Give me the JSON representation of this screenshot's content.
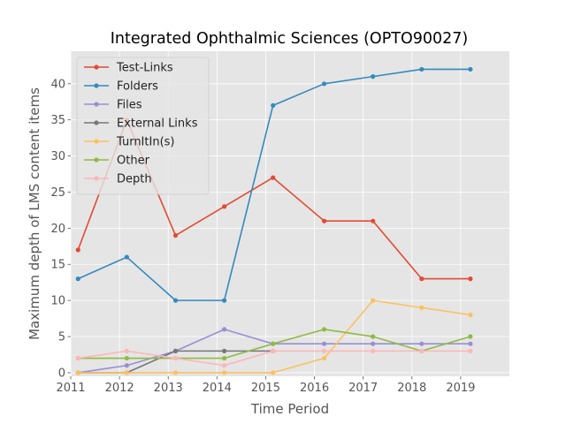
{
  "chart_data": {
    "type": "line",
    "title": "Integrated Ophthalmic Sciences (OPTO90027)",
    "xlabel": "Time Period",
    "ylabel": "Maximum depth of LMS content items",
    "xlim": [
      2011,
      2020
    ],
    "ylim": [
      -0.5,
      44.5
    ],
    "x_ticks": [
      2011,
      2012,
      2013,
      2014,
      2015,
      2016,
      2017,
      2018,
      2019
    ],
    "y_ticks": [
      0,
      5,
      10,
      15,
      20,
      25,
      30,
      35,
      40
    ],
    "grid": true,
    "legend_position": "top-left",
    "x": [
      2011.15,
      2012.15,
      2013.15,
      2014.15,
      2015.15,
      2016.2,
      2017.2,
      2018.2,
      2019.2
    ],
    "series": [
      {
        "name": "Test-Links",
        "color": "#E24A33",
        "values": [
          17,
          35,
          19,
          23,
          27,
          21,
          21,
          13,
          13
        ]
      },
      {
        "name": "Folders",
        "color": "#348ABD",
        "values": [
          13,
          16,
          10,
          10,
          37,
          40,
          41,
          42,
          42
        ]
      },
      {
        "name": "Files",
        "color": "#988ED5",
        "values": [
          0,
          1,
          3,
          6,
          4,
          4,
          4,
          4,
          4
        ]
      },
      {
        "name": "External Links",
        "color": "#777777",
        "values": [
          0,
          0,
          3,
          3,
          3,
          null,
          null,
          null,
          null
        ]
      },
      {
        "name": "TurnItIn(s)",
        "color": "#FBC15E",
        "values": [
          0,
          0,
          0,
          0,
          0,
          2,
          10,
          9,
          8
        ]
      },
      {
        "name": "Other",
        "color": "#8EBA42",
        "values": [
          2,
          2,
          2,
          2,
          4,
          6,
          5,
          3,
          5
        ]
      },
      {
        "name": "Depth",
        "color": "#FFB5B8",
        "values": [
          2,
          3,
          2,
          1,
          3,
          3,
          3,
          3,
          3
        ]
      }
    ]
  }
}
